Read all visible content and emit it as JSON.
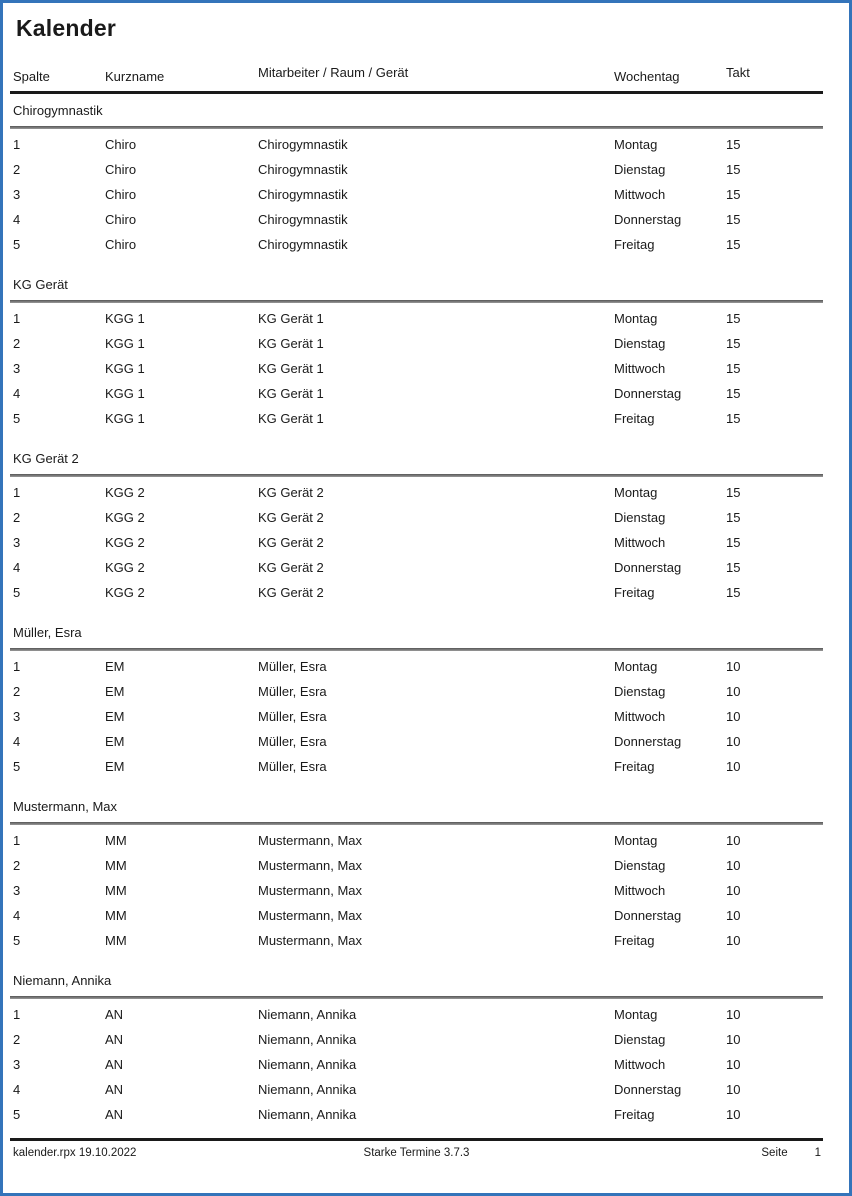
{
  "page": {
    "title": "Kalender",
    "border_color": "#3474ba"
  },
  "table": {
    "columns": [
      "Spalte",
      "Kurzname",
      "Mitarbeiter / Raum / Gerät",
      "Wochentag",
      "Takt"
    ],
    "groups": [
      {
        "name": "Chirogymnastik",
        "rows": [
          {
            "spalte": "1",
            "kurzname": "Chiro",
            "mitarbeiter": "Chirogymnastik",
            "wochentag": "Montag",
            "takt": "15"
          },
          {
            "spalte": "2",
            "kurzname": "Chiro",
            "mitarbeiter": "Chirogymnastik",
            "wochentag": "Dienstag",
            "takt": "15"
          },
          {
            "spalte": "3",
            "kurzname": "Chiro",
            "mitarbeiter": "Chirogymnastik",
            "wochentag": "Mittwoch",
            "takt": "15"
          },
          {
            "spalte": "4",
            "kurzname": "Chiro",
            "mitarbeiter": "Chirogymnastik",
            "wochentag": "Donnerstag",
            "takt": "15"
          },
          {
            "spalte": "5",
            "kurzname": "Chiro",
            "mitarbeiter": "Chirogymnastik",
            "wochentag": "Freitag",
            "takt": "15"
          }
        ]
      },
      {
        "name": "KG Gerät",
        "rows": [
          {
            "spalte": "1",
            "kurzname": "KGG 1",
            "mitarbeiter": "KG Gerät 1",
            "wochentag": "Montag",
            "takt": "15"
          },
          {
            "spalte": "2",
            "kurzname": "KGG 1",
            "mitarbeiter": "KG Gerät 1",
            "wochentag": "Dienstag",
            "takt": "15"
          },
          {
            "spalte": "3",
            "kurzname": "KGG 1",
            "mitarbeiter": "KG Gerät 1",
            "wochentag": "Mittwoch",
            "takt": "15"
          },
          {
            "spalte": "4",
            "kurzname": "KGG 1",
            "mitarbeiter": "KG Gerät 1",
            "wochentag": "Donnerstag",
            "takt": "15"
          },
          {
            "spalte": "5",
            "kurzname": "KGG 1",
            "mitarbeiter": "KG Gerät 1",
            "wochentag": "Freitag",
            "takt": "15"
          }
        ]
      },
      {
        "name": "KG Gerät 2",
        "rows": [
          {
            "spalte": "1",
            "kurzname": "KGG 2",
            "mitarbeiter": "KG Gerät 2",
            "wochentag": "Montag",
            "takt": "15"
          },
          {
            "spalte": "2",
            "kurzname": "KGG 2",
            "mitarbeiter": "KG Gerät 2",
            "wochentag": "Dienstag",
            "takt": "15"
          },
          {
            "spalte": "3",
            "kurzname": "KGG 2",
            "mitarbeiter": "KG Gerät 2",
            "wochentag": "Mittwoch",
            "takt": "15"
          },
          {
            "spalte": "4",
            "kurzname": "KGG 2",
            "mitarbeiter": "KG Gerät 2",
            "wochentag": "Donnerstag",
            "takt": "15"
          },
          {
            "spalte": "5",
            "kurzname": "KGG 2",
            "mitarbeiter": "KG Gerät 2",
            "wochentag": "Freitag",
            "takt": "15"
          }
        ]
      },
      {
        "name": "Müller, Esra",
        "rows": [
          {
            "spalte": "1",
            "kurzname": "EM",
            "mitarbeiter": "Müller, Esra",
            "wochentag": "Montag",
            "takt": "10"
          },
          {
            "spalte": "2",
            "kurzname": "EM",
            "mitarbeiter": "Müller, Esra",
            "wochentag": "Dienstag",
            "takt": "10"
          },
          {
            "spalte": "3",
            "kurzname": "EM",
            "mitarbeiter": "Müller, Esra",
            "wochentag": "Mittwoch",
            "takt": "10"
          },
          {
            "spalte": "4",
            "kurzname": "EM",
            "mitarbeiter": "Müller, Esra",
            "wochentag": "Donnerstag",
            "takt": "10"
          },
          {
            "spalte": "5",
            "kurzname": "EM",
            "mitarbeiter": "Müller, Esra",
            "wochentag": "Freitag",
            "takt": "10"
          }
        ]
      },
      {
        "name": "Mustermann, Max",
        "rows": [
          {
            "spalte": "1",
            "kurzname": "MM",
            "mitarbeiter": "Mustermann, Max",
            "wochentag": "Montag",
            "takt": "10"
          },
          {
            "spalte": "2",
            "kurzname": "MM",
            "mitarbeiter": "Mustermann, Max",
            "wochentag": "Dienstag",
            "takt": "10"
          },
          {
            "spalte": "3",
            "kurzname": "MM",
            "mitarbeiter": "Mustermann, Max",
            "wochentag": "Mittwoch",
            "takt": "10"
          },
          {
            "spalte": "4",
            "kurzname": "MM",
            "mitarbeiter": "Mustermann, Max",
            "wochentag": "Donnerstag",
            "takt": "10"
          },
          {
            "spalte": "5",
            "kurzname": "MM",
            "mitarbeiter": "Mustermann, Max",
            "wochentag": "Freitag",
            "takt": "10"
          }
        ]
      },
      {
        "name": "Niemann, Annika",
        "rows": [
          {
            "spalte": "1",
            "kurzname": "AN",
            "mitarbeiter": "Niemann, Annika",
            "wochentag": "Montag",
            "takt": "10"
          },
          {
            "spalte": "2",
            "kurzname": "AN",
            "mitarbeiter": "Niemann, Annika",
            "wochentag": "Dienstag",
            "takt": "10"
          },
          {
            "spalte": "3",
            "kurzname": "AN",
            "mitarbeiter": "Niemann, Annika",
            "wochentag": "Mittwoch",
            "takt": "10"
          },
          {
            "spalte": "4",
            "kurzname": "AN",
            "mitarbeiter": "Niemann, Annika",
            "wochentag": "Donnerstag",
            "takt": "10"
          },
          {
            "spalte": "5",
            "kurzname": "AN",
            "mitarbeiter": "Niemann, Annika",
            "wochentag": "Freitag",
            "takt": "10"
          }
        ]
      }
    ]
  },
  "footer": {
    "left": "kalender.rpx 19.10.2022",
    "center": "Starke Termine 3.7.3",
    "page_label": "Seite",
    "page_number": "1"
  }
}
